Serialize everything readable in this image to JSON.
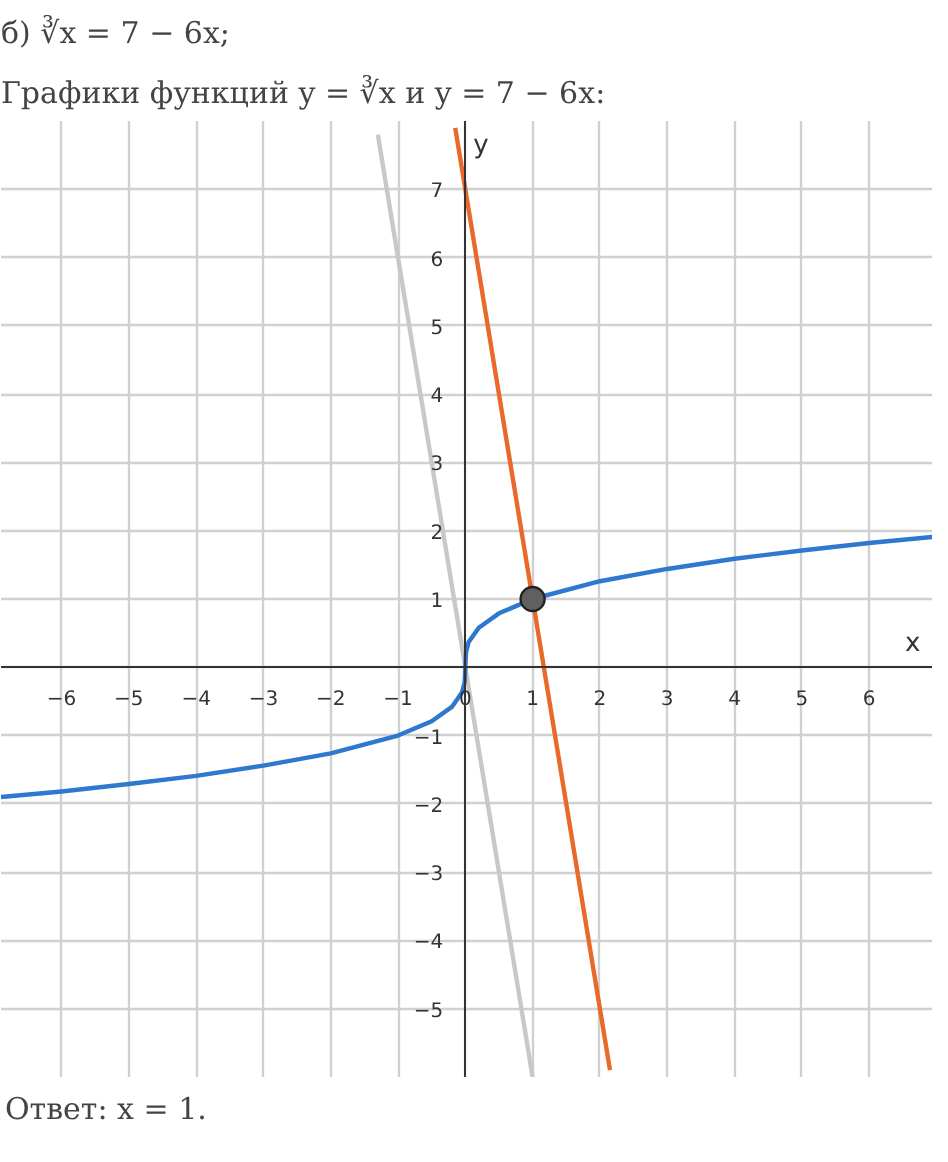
{
  "chart_data": {
    "type": "line",
    "title": "б) ∛x = 7 − 6x;",
    "subtitle": "Графики функций y = ∛x и y = 7 − 6x:",
    "xlabel": "x",
    "ylabel": "y",
    "annotations": [
      "Ответ:  x = 1."
    ],
    "xlim": [
      -6.9,
      6.95
    ],
    "ylim": [
      -6,
      8
    ],
    "xticks": [
      -6,
      -5,
      -4,
      -3,
      -2,
      -1,
      0,
      1,
      2,
      3,
      4,
      5,
      6
    ],
    "yticks": [
      -5,
      -4,
      -3,
      -2,
      -1,
      {
        "value": 0,
        "label": null
      },
      1,
      2,
      3,
      4,
      5,
      6,
      7
    ],
    "grid": true,
    "series": [
      {
        "color": "#c8c8c8",
        "x": [
          -1.3,
          1
        ],
        "values": [
          7.8,
          -6
        ]
      },
      {
        "color": "#2f78d0",
        "x": [
          -6.9,
          -6,
          -5,
          -4,
          -3,
          -2,
          -1,
          -0.5,
          -0.2,
          -0.05,
          -0.01,
          0,
          0.01,
          0.05,
          0.2,
          0.5,
          1,
          2,
          3,
          4,
          5,
          6,
          6.95
        ],
        "values": [
          -1.9,
          -1.82,
          -1.71,
          -1.59,
          -1.44,
          -1.26,
          -1,
          -0.79,
          -0.58,
          -0.37,
          -0.22,
          0,
          0.22,
          0.37,
          0.58,
          0.79,
          1,
          1.26,
          1.44,
          1.59,
          1.71,
          1.82,
          1.91
        ]
      },
      {
        "color": "#e8692a",
        "x": [
          -0.15,
          2.15
        ],
        "values": [
          7.9,
          -5.9
        ]
      },
      {
        "type": "scatter",
        "color": "#606060",
        "marker": "circle",
        "x": [
          1
        ],
        "values": [
          1
        ]
      }
    ]
  }
}
